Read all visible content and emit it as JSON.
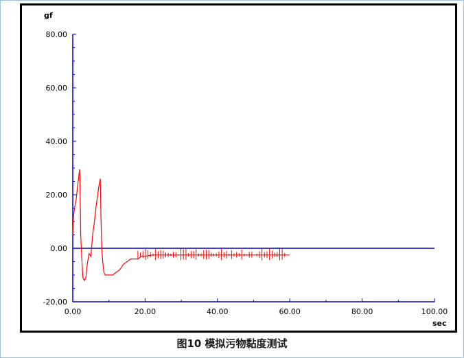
{
  "caption": "图10 模拟污物黏度测试",
  "colors": {
    "axis": "#0000cc",
    "series": "#ff0000",
    "text": "#000000"
  },
  "chart_data": {
    "type": "line",
    "ylabel": "gf",
    "xlabel": "sec",
    "xlim": [
      0,
      100
    ],
    "ylim": [
      -20,
      80
    ],
    "x_ticks": [
      0,
      20,
      40,
      60,
      80,
      100
    ],
    "x_tick_labels": [
      "0.00",
      "20.00",
      "40.00",
      "60.00",
      "80.00",
      "100.00"
    ],
    "y_ticks": [
      80,
      60,
      40,
      20,
      0,
      -20
    ],
    "y_tick_labels": [
      "80.00",
      "60.00",
      "40.00",
      "20.00",
      "0.00",
      "-20.00"
    ],
    "grid": false,
    "series": [
      {
        "color": "#ff0000",
        "x": [
          0.0,
          0.2,
          0.5,
          0.8,
          1.0,
          1.3,
          1.6,
          1.9,
          2.0,
          2.2,
          2.5,
          2.8,
          3.2,
          3.6,
          4.0,
          4.5,
          5.0,
          5.5,
          6.0,
          6.4,
          6.8,
          7.2,
          7.6,
          7.8,
          8.0,
          8.3,
          8.6,
          9.0,
          10.0,
          11.0,
          12.0,
          13.0,
          14.0,
          15.0,
          16.0,
          17.0,
          18.0,
          19.0,
          20.0,
          22.0,
          25.0,
          30.0,
          35.0,
          40.0,
          45.0,
          50.0,
          55.0,
          60.0
        ],
        "y": [
          5.0,
          12.0,
          15.0,
          17.0,
          19.0,
          23.0,
          26.0,
          29.5,
          25.0,
          5.0,
          -4.0,
          -11.0,
          -12.0,
          -11.0,
          -6.0,
          -2.0,
          -3.0,
          5.0,
          10.0,
          15.0,
          19.0,
          23.0,
          26.0,
          12.0,
          0.0,
          -5.0,
          -9.0,
          -10.0,
          -10.0,
          -10.0,
          -9.0,
          -8.0,
          -6.0,
          -5.0,
          -4.0,
          -4.0,
          -4.0,
          -3.0,
          -3.0,
          -2.5,
          -2.5,
          -2.5,
          -2.5,
          -2.5,
          -2.5,
          -2.5,
          -2.5,
          -2.5
        ]
      }
    ]
  }
}
